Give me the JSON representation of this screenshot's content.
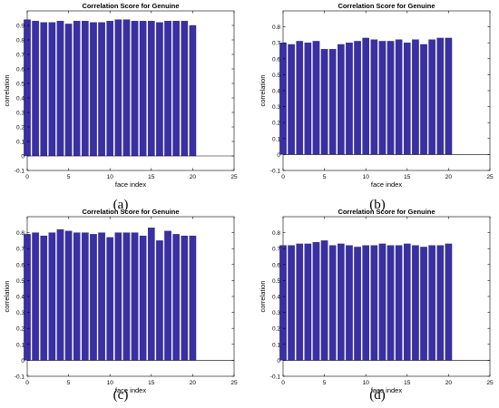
{
  "chart_data": [
    {
      "type": "bar",
      "caption": "(a)",
      "title": "Correlation Score for Genuine",
      "xlabel": "face index",
      "ylabel": "correlation",
      "xlim": [
        0,
        25
      ],
      "ylim": [
        -0.1,
        1.0
      ],
      "xticks": [
        "0",
        "5",
        "10",
        "15",
        "20",
        "25"
      ],
      "yticks": [
        "-0.1",
        "0",
        "0.1",
        "0.2",
        "0.3",
        "0.4",
        "0.5",
        "0.6",
        "0.7",
        "0.8",
        "0.9"
      ],
      "x": [
        0,
        1,
        2,
        3,
        4,
        5,
        6,
        7,
        8,
        9,
        10,
        11,
        12,
        13,
        14,
        15,
        16,
        17,
        18,
        19,
        20
      ],
      "values": [
        0.94,
        0.93,
        0.92,
        0.92,
        0.93,
        0.91,
        0.93,
        0.93,
        0.92,
        0.92,
        0.93,
        0.94,
        0.94,
        0.93,
        0.93,
        0.93,
        0.92,
        0.93,
        0.93,
        0.93,
        0.9
      ],
      "bar_color": "#3a2fa3",
      "grid": false
    },
    {
      "type": "bar",
      "caption": "(b)",
      "title": "Correlation Score for Genuine",
      "xlabel": "face index",
      "ylabel": "correlation",
      "xlim": [
        0,
        25
      ],
      "ylim": [
        -0.1,
        0.9
      ],
      "xticks": [
        "0",
        "5",
        "10",
        "15",
        "20",
        "25"
      ],
      "yticks": [
        "-0.1",
        "0",
        "0.1",
        "0.2",
        "0.3",
        "0.4",
        "0.5",
        "0.6",
        "0.7",
        "0.8"
      ],
      "x": [
        0,
        1,
        2,
        3,
        4,
        5,
        6,
        7,
        8,
        9,
        10,
        11,
        12,
        13,
        14,
        15,
        16,
        17,
        18,
        19,
        20
      ],
      "values": [
        0.7,
        0.69,
        0.71,
        0.7,
        0.71,
        0.66,
        0.66,
        0.69,
        0.7,
        0.71,
        0.73,
        0.72,
        0.71,
        0.71,
        0.72,
        0.7,
        0.72,
        0.69,
        0.72,
        0.73,
        0.73
      ],
      "bar_color": "#3a2fa3",
      "grid": false
    },
    {
      "type": "bar",
      "caption": "(c)",
      "title": "Correlation Score for Genuine",
      "xlabel": "face index",
      "ylabel": "correlation",
      "xlim": [
        0,
        25
      ],
      "ylim": [
        -0.1,
        0.9
      ],
      "xticks": [
        "0",
        "5",
        "10",
        "15",
        "20",
        "25"
      ],
      "yticks": [
        "-0.1",
        "0",
        "0.1",
        "0.2",
        "0.3",
        "0.4",
        "0.5",
        "0.6",
        "0.7",
        "0.8"
      ],
      "x": [
        0,
        1,
        2,
        3,
        4,
        5,
        6,
        7,
        8,
        9,
        10,
        11,
        12,
        13,
        14,
        15,
        16,
        17,
        18,
        19,
        20
      ],
      "values": [
        0.79,
        0.8,
        0.78,
        0.8,
        0.82,
        0.81,
        0.8,
        0.8,
        0.79,
        0.8,
        0.77,
        0.8,
        0.8,
        0.8,
        0.78,
        0.83,
        0.75,
        0.81,
        0.79,
        0.78,
        0.78
      ],
      "bar_color": "#3a2fa3",
      "grid": false
    },
    {
      "type": "bar",
      "caption": "(d)",
      "title": "Correlation Score for Genuine",
      "xlabel": "face index",
      "ylabel": "correlation",
      "xlim": [
        0,
        25
      ],
      "ylim": [
        -0.1,
        0.9
      ],
      "xticks": [
        "0",
        "5",
        "10",
        "15",
        "20",
        "25"
      ],
      "yticks": [
        "-0.1",
        "0",
        "0.1",
        "0.2",
        "0.3",
        "0.4",
        "0.5",
        "0.6",
        "0.7",
        "0.8"
      ],
      "x": [
        0,
        1,
        2,
        3,
        4,
        5,
        6,
        7,
        8,
        9,
        10,
        11,
        12,
        13,
        14,
        15,
        16,
        17,
        18,
        19,
        20
      ],
      "values": [
        0.72,
        0.72,
        0.73,
        0.73,
        0.74,
        0.75,
        0.72,
        0.73,
        0.72,
        0.71,
        0.72,
        0.72,
        0.73,
        0.72,
        0.72,
        0.73,
        0.72,
        0.71,
        0.72,
        0.72,
        0.73
      ],
      "bar_color": "#3a2fa3",
      "grid": false
    }
  ]
}
